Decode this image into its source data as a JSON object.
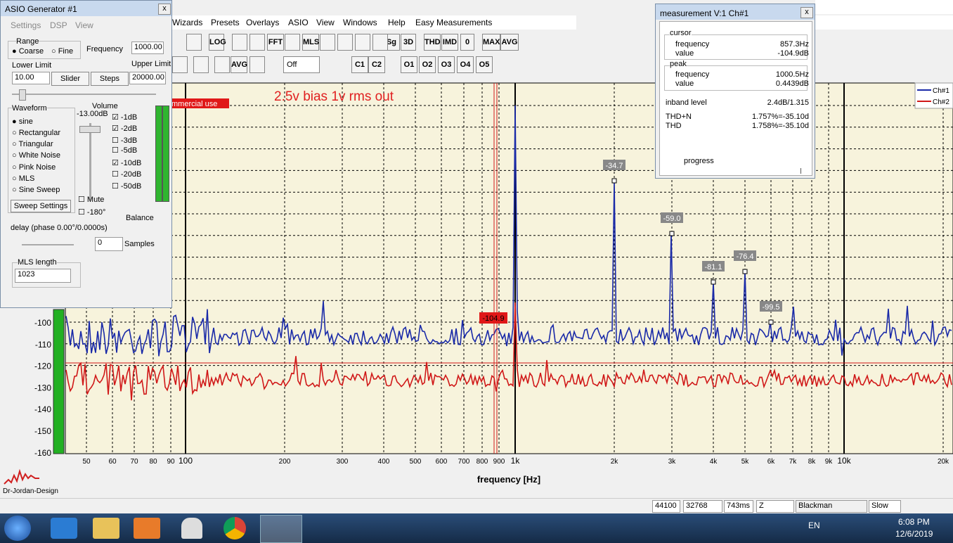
{
  "generator": {
    "title": "ASIO Generator #1",
    "menu": [
      "Settings",
      "DSP",
      "View"
    ],
    "range": "Range",
    "coarse": "Coarse",
    "fine": "Fine",
    "frequency_label": "Frequency",
    "frequency": "1000.00",
    "lower_label": "Lower Limit",
    "upper_label": "Upper Limit",
    "lower": "10.00",
    "upper": "20000.00",
    "slider": "Slider",
    "steps": "Steps",
    "waveform": "Waveform",
    "waveforms": [
      "sine",
      "Rectangular",
      "Triangular",
      "White Noise",
      "Pink Noise",
      "MLS",
      "Sine Sweep"
    ],
    "sweep": "Sweep Settings",
    "volume": "Volume",
    "volume_value": "-13.00dB",
    "atten": [
      "-1dB",
      "-2dB",
      "-3dB",
      "-5dB",
      "-10dB",
      "-20dB",
      "-50dB"
    ],
    "mute": "Mute",
    "invert": "-180°",
    "balance": "Balance",
    "delay": "delay (phase  0.00°/0.0000s)",
    "samples_value": "0",
    "samples": "Samples",
    "mls_length": "MLS length",
    "mls_value": "1023"
  },
  "menubar": [
    "Wizards",
    "Presets",
    "Overlays",
    "ASIO",
    "View",
    "Windows",
    "Help",
    "Easy Measurements"
  ],
  "toolbar": [
    "LOG",
    "FFT",
    "MLS",
    "Sg",
    "3D",
    "THD",
    "IMD",
    "0",
    "MAX",
    "AVG",
    "AVG",
    "Off",
    "C1",
    "C2",
    "O1",
    "O2",
    "O3",
    "O4",
    "O5"
  ],
  "plot": {
    "annotation": "2.5v bias 1v rms out",
    "banner": "mmercial use",
    "y_labels": [
      "-100",
      "-110",
      "-120",
      "-130",
      "-140",
      "-150",
      "-160"
    ],
    "x_labels": [
      "50",
      "60",
      "70",
      "80",
      "90",
      "100",
      "200",
      "300",
      "400",
      "500",
      "600",
      "700",
      "800",
      "900",
      "1k",
      "2k",
      "3k",
      "4k",
      "5k",
      "6k",
      "7k",
      "8k",
      "9k",
      "10k",
      "20k"
    ],
    "x_title": "frequency [Hz]",
    "legend": [
      "Ch#1",
      "Ch#2"
    ],
    "peaks": [
      "-34.7",
      "-59.0",
      "-81.1",
      "-76.4",
      "-99.5"
    ],
    "cursor_label": "-104.9",
    "logo": "Dr-Jordan-Design"
  },
  "measurement": {
    "title": "measurement V:1 Ch#1",
    "cursor": "cursor",
    "frequency": "frequency",
    "value": "value",
    "cursor_frequency": "857.3Hz",
    "cursor_value": "-104.9dB",
    "peak": "peak",
    "peak_frequency": "1000.5Hz",
    "peak_value": "0.4439dB",
    "inband_label": "inband level",
    "inband": "2.4dB/1.315",
    "thdn_label": "THD+N",
    "thdn": "1.757%=-35.10d",
    "thd_label": "THD",
    "thd": "1.758%=-35.10d",
    "progress": "progress"
  },
  "status": [
    "44100",
    "32768",
    "743ms",
    "Z",
    "Blackman",
    "Slow"
  ],
  "taskbar": {
    "lang": "EN",
    "time": "6:08 PM",
    "date": "12/6/2019"
  }
}
